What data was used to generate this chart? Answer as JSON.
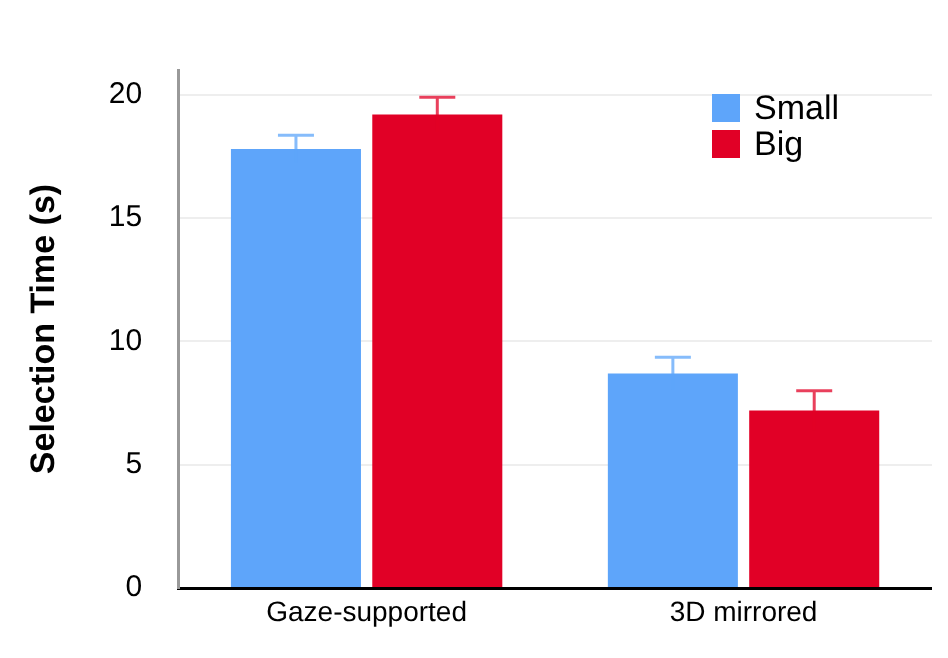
{
  "chart_data": {
    "type": "bar",
    "ylabel": "Selection Time (s)",
    "categories": [
      "Gaze-supported",
      "3D mirrored"
    ],
    "series": [
      {
        "name": "Small",
        "color": "#5ea5fa",
        "values": [
          17.8,
          8.7
        ],
        "errors": [
          0.55,
          0.65
        ]
      },
      {
        "name": "Big",
        "color": "#e10026",
        "values": [
          19.2,
          7.2
        ],
        "errors": [
          0.7,
          0.8
        ]
      }
    ],
    "ylim": [
      0,
      21
    ],
    "yticks": [
      0,
      5,
      10,
      15,
      20
    ],
    "grid": "y",
    "legend": "top right"
  }
}
